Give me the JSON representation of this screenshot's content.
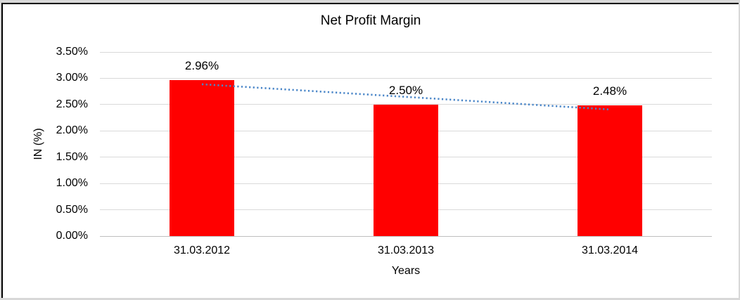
{
  "chart_data": {
    "type": "bar",
    "title": "Net Profit Margin",
    "xlabel": "Years",
    "ylabel": "IN (%)",
    "categories": [
      "31.03.2012",
      "31.03.2013",
      "31.03.2014"
    ],
    "values": [
      2.96,
      2.5,
      2.48
    ],
    "data_labels": [
      "2.96%",
      "2.50%",
      "2.48%"
    ],
    "ylim": [
      0,
      3.5
    ],
    "yticks": [
      {
        "value": 0.0,
        "label": "0.00%"
      },
      {
        "value": 0.5,
        "label": "0.50%"
      },
      {
        "value": 1.0,
        "label": "1.00%"
      },
      {
        "value": 1.5,
        "label": "1.50%"
      },
      {
        "value": 2.0,
        "label": "2.00%"
      },
      {
        "value": 2.5,
        "label": "2.50%"
      },
      {
        "value": 3.0,
        "label": "3.00%"
      },
      {
        "value": 3.5,
        "label": "3.50%"
      }
    ],
    "grid": true,
    "legend": "none",
    "bar_color": "#FF0000",
    "gridline_color": "#D9D9D9",
    "axis_line_color": "#BFBFBF",
    "text_color": "#000000",
    "trendline": {
      "type": "linear",
      "style": "dotted",
      "color": "#4A86C8"
    }
  }
}
